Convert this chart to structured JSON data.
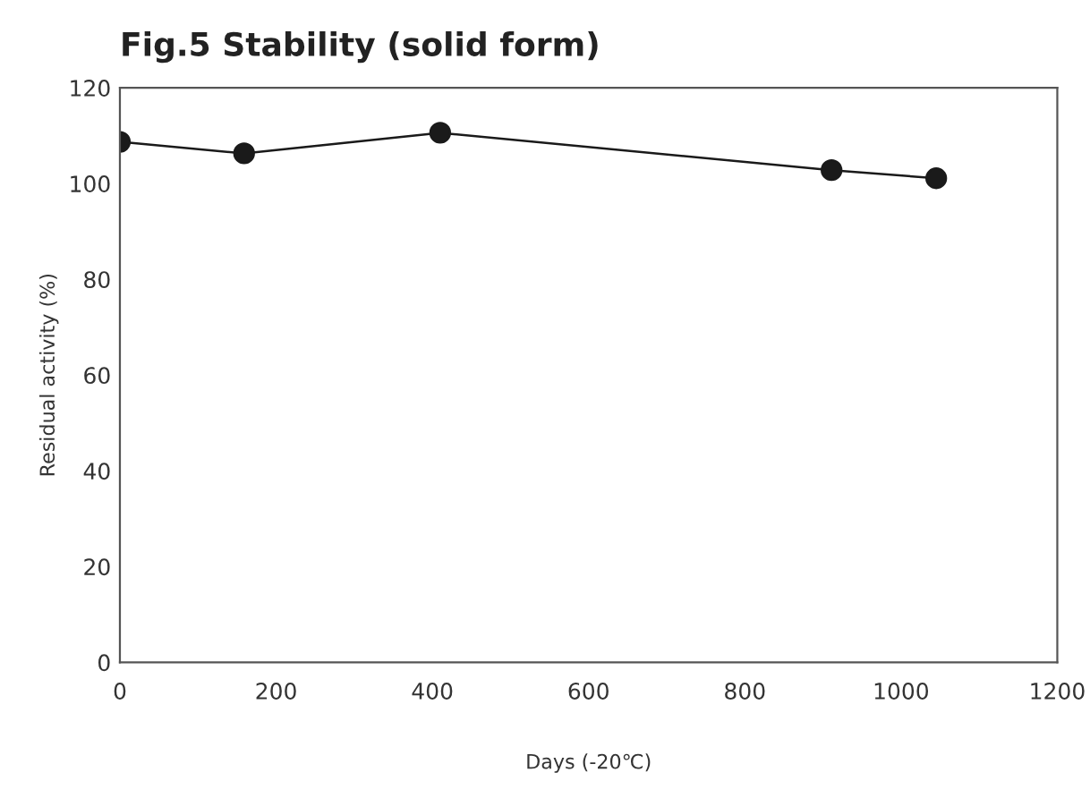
{
  "chart_data": {
    "type": "line",
    "title": "Fig.5 Stability (solid form)",
    "xlabel": "Days (-20℃)",
    "ylabel": "Residual activity (%)",
    "x": [
      0,
      159,
      410,
      911,
      1045
    ],
    "series": [
      {
        "color": "#1a1a1a",
        "values": [
          108.7,
          106.3,
          110.6,
          102.8,
          101.1
        ]
      }
    ],
    "xlim": [
      0,
      1200
    ],
    "xticks": [
      0,
      200,
      400,
      600,
      800,
      1000,
      1200
    ],
    "ylim": [
      0,
      120
    ],
    "yticks": [
      0,
      20,
      40,
      60,
      80,
      100,
      120
    ],
    "marker": "circle",
    "line_style": "solid",
    "grid": false,
    "legend": false
  }
}
